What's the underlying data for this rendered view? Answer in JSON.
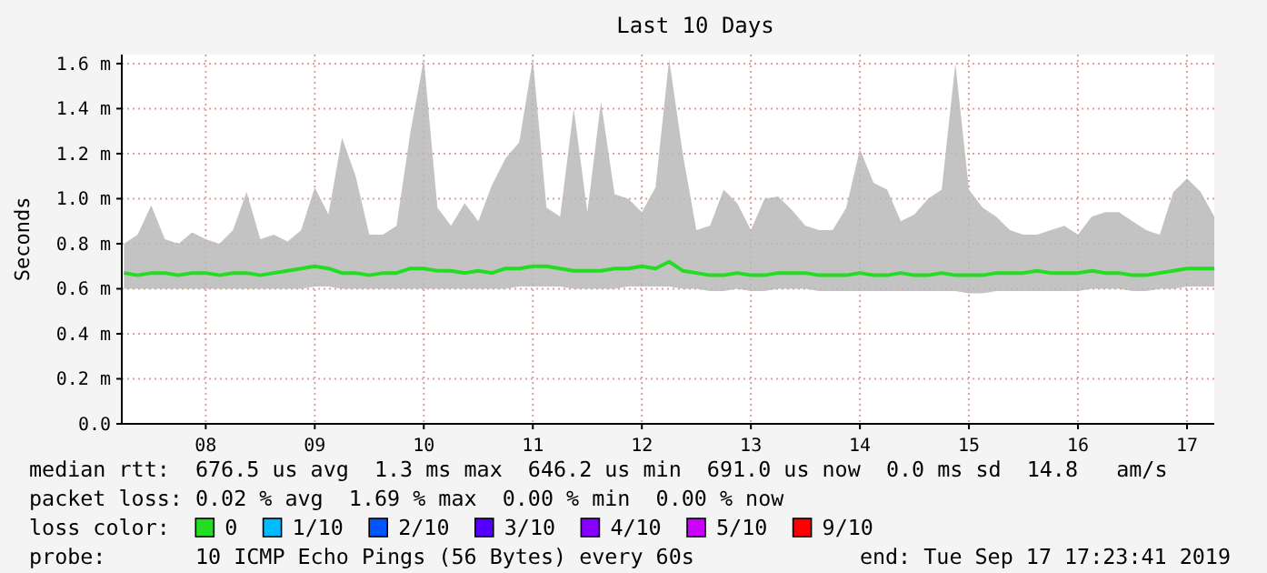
{
  "chart_data": {
    "type": "line",
    "title": "Last 10 Days",
    "ylabel": "Seconds",
    "x": [
      7.25,
      7.375,
      7.5,
      7.625,
      7.75,
      7.875,
      8,
      8.125,
      8.25,
      8.375,
      8.5,
      8.625,
      8.75,
      8.875,
      9,
      9.125,
      9.25,
      9.375,
      9.5,
      9.625,
      9.75,
      9.875,
      10,
      10.125,
      10.25,
      10.375,
      10.5,
      10.625,
      10.75,
      10.875,
      11,
      11.125,
      11.25,
      11.375,
      11.5,
      11.625,
      11.75,
      11.875,
      12,
      12.125,
      12.25,
      12.375,
      12.5,
      12.625,
      12.75,
      12.875,
      13,
      13.125,
      13.25,
      13.375,
      13.5,
      13.625,
      13.75,
      13.875,
      14,
      14.125,
      14.25,
      14.375,
      14.5,
      14.625,
      14.75,
      14.875,
      15,
      15.125,
      15.25,
      15.375,
      15.5,
      15.625,
      15.75,
      15.875,
      16,
      16.125,
      16.25,
      16.375,
      16.5,
      16.625,
      16.75,
      16.875,
      17,
      17.125,
      17.25
    ],
    "series": [
      {
        "name": "0",
        "color": "#22dd22",
        "values": [
          0.67,
          0.66,
          0.67,
          0.67,
          0.66,
          0.67,
          0.67,
          0.66,
          0.67,
          0.67,
          0.66,
          0.67,
          0.68,
          0.69,
          0.7,
          0.69,
          0.67,
          0.67,
          0.66,
          0.67,
          0.67,
          0.69,
          0.69,
          0.68,
          0.68,
          0.67,
          0.68,
          0.67,
          0.69,
          0.69,
          0.7,
          0.7,
          0.69,
          0.68,
          0.68,
          0.68,
          0.69,
          0.69,
          0.7,
          0.69,
          0.72,
          0.68,
          0.67,
          0.66,
          0.66,
          0.67,
          0.66,
          0.66,
          0.67,
          0.67,
          0.67,
          0.66,
          0.66,
          0.66,
          0.67,
          0.66,
          0.66,
          0.67,
          0.66,
          0.66,
          0.67,
          0.66,
          0.66,
          0.66,
          0.67,
          0.67,
          0.67,
          0.68,
          0.67,
          0.67,
          0.67,
          0.68,
          0.67,
          0.67,
          0.66,
          0.66,
          0.67,
          0.68,
          0.69,
          0.69,
          0.69
        ],
        "lower": [
          0.6,
          0.6,
          0.6,
          0.6,
          0.6,
          0.6,
          0.6,
          0.6,
          0.6,
          0.6,
          0.6,
          0.6,
          0.6,
          0.6,
          0.61,
          0.61,
          0.6,
          0.6,
          0.6,
          0.6,
          0.6,
          0.6,
          0.6,
          0.6,
          0.6,
          0.6,
          0.6,
          0.6,
          0.6,
          0.61,
          0.61,
          0.61,
          0.61,
          0.6,
          0.6,
          0.6,
          0.6,
          0.61,
          0.61,
          0.61,
          0.61,
          0.6,
          0.6,
          0.59,
          0.59,
          0.6,
          0.59,
          0.59,
          0.6,
          0.6,
          0.6,
          0.59,
          0.59,
          0.59,
          0.59,
          0.59,
          0.59,
          0.59,
          0.59,
          0.59,
          0.59,
          0.59,
          0.58,
          0.58,
          0.59,
          0.59,
          0.59,
          0.59,
          0.59,
          0.59,
          0.59,
          0.6,
          0.6,
          0.6,
          0.59,
          0.59,
          0.6,
          0.6,
          0.61,
          0.61,
          0.61
        ],
        "upper": [
          0.8,
          0.84,
          0.97,
          0.82,
          0.8,
          0.85,
          0.82,
          0.8,
          0.86,
          1.03,
          0.82,
          0.84,
          0.81,
          0.86,
          1.05,
          0.93,
          1.27,
          1.1,
          0.84,
          0.84,
          0.88,
          1.29,
          1.62,
          0.96,
          0.88,
          0.98,
          0.9,
          1.06,
          1.18,
          1.25,
          1.62,
          0.96,
          0.92,
          1.4,
          0.94,
          1.43,
          1.02,
          1.0,
          0.94,
          1.05,
          1.62,
          1.2,
          0.86,
          0.88,
          1.04,
          0.98,
          0.86,
          1.0,
          1.01,
          0.95,
          0.88,
          0.86,
          0.86,
          0.96,
          1.22,
          1.07,
          1.04,
          0.9,
          0.93,
          1.0,
          1.04,
          1.6,
          1.04,
          0.96,
          0.92,
          0.86,
          0.84,
          0.84,
          0.86,
          0.88,
          0.84,
          0.92,
          0.94,
          0.94,
          0.9,
          0.86,
          0.84,
          1.03,
          1.09,
          1.03,
          0.92
        ]
      },
      {
        "name": "1/10",
        "color": "#00bbff",
        "values": [
          null,
          null,
          null,
          null,
          null,
          null,
          null,
          null,
          null,
          null,
          null,
          null,
          null,
          null,
          null,
          null,
          null,
          null,
          null,
          null,
          null,
          null,
          null,
          null,
          null,
          null,
          null,
          null,
          null,
          null,
          null,
          null,
          null,
          null,
          null,
          null,
          null,
          null,
          null,
          null,
          null,
          null,
          null,
          null,
          null,
          null,
          null,
          null,
          null,
          null,
          null,
          null,
          null,
          null,
          null,
          null,
          null,
          null,
          null,
          null,
          null,
          null,
          null,
          null,
          null,
          null,
          null,
          null,
          null,
          null,
          null,
          null,
          null,
          null,
          null,
          null,
          null,
          null,
          null,
          null,
          null
        ]
      },
      {
        "name": "2/10",
        "color": "#0055ff",
        "values": [
          null,
          null,
          null,
          null,
          null,
          null,
          null,
          null,
          null,
          null,
          null,
          null,
          null,
          null,
          null,
          null,
          null,
          null,
          null,
          null,
          null,
          null,
          null,
          null,
          null,
          null,
          null,
          null,
          null,
          null,
          null,
          null,
          null,
          null,
          null,
          null,
          null,
          null,
          null,
          null,
          null,
          null,
          null,
          null,
          null,
          null,
          null,
          null,
          null,
          null,
          null,
          null,
          null,
          null,
          null,
          null,
          null,
          null,
          null,
          null,
          null,
          null,
          null,
          null,
          null,
          null,
          null,
          null,
          null,
          null,
          null,
          null,
          null,
          null,
          null,
          null,
          null,
          null,
          null,
          null,
          null
        ]
      },
      {
        "name": "3/10",
        "color": "#5500ff",
        "values": [
          null,
          null,
          null,
          null,
          null,
          null,
          null,
          null,
          null,
          null,
          null,
          null,
          null,
          null,
          null,
          null,
          null,
          null,
          null,
          null,
          null,
          null,
          null,
          null,
          null,
          null,
          null,
          null,
          null,
          null,
          null,
          null,
          null,
          null,
          null,
          null,
          null,
          null,
          null,
          null,
          null,
          null,
          null,
          null,
          null,
          null,
          null,
          null,
          null,
          null,
          null,
          null,
          null,
          null,
          null,
          null,
          null,
          null,
          null,
          null,
          null,
          null,
          null,
          null,
          null,
          null,
          null,
          null,
          null,
          null,
          null,
          null,
          null,
          null,
          null,
          null,
          null,
          null,
          null,
          null,
          null
        ]
      },
      {
        "name": "4/10",
        "color": "#8800ff",
        "values": [
          null,
          null,
          null,
          null,
          null,
          null,
          null,
          null,
          null,
          null,
          null,
          null,
          null,
          null,
          null,
          null,
          null,
          null,
          null,
          null,
          null,
          null,
          null,
          null,
          null,
          null,
          null,
          null,
          null,
          null,
          null,
          null,
          null,
          null,
          null,
          null,
          null,
          null,
          null,
          null,
          null,
          null,
          null,
          null,
          null,
          null,
          null,
          null,
          null,
          null,
          null,
          null,
          null,
          null,
          null,
          null,
          null,
          null,
          null,
          null,
          null,
          null,
          null,
          null,
          null,
          null,
          null,
          null,
          null,
          null,
          null,
          null,
          null,
          null,
          null,
          null,
          null,
          null,
          null,
          null,
          null
        ]
      },
      {
        "name": "5/10",
        "color": "#cc00ff",
        "values": [
          null,
          null,
          null,
          null,
          null,
          null,
          null,
          null,
          null,
          null,
          null,
          null,
          null,
          null,
          null,
          null,
          null,
          null,
          null,
          null,
          null,
          null,
          null,
          null,
          null,
          null,
          null,
          null,
          null,
          null,
          null,
          null,
          null,
          null,
          null,
          null,
          null,
          null,
          null,
          null,
          null,
          null,
          null,
          null,
          null,
          null,
          null,
          null,
          null,
          null,
          null,
          null,
          null,
          null,
          null,
          null,
          null,
          null,
          null,
          null,
          null,
          null,
          null,
          null,
          null,
          null,
          null,
          null,
          null,
          null,
          null,
          null,
          null,
          null,
          null,
          null,
          null,
          null,
          null,
          null,
          null
        ]
      },
      {
        "name": "9/10",
        "color": "#ff0000",
        "values": [
          null,
          null,
          null,
          null,
          null,
          null,
          null,
          null,
          null,
          null,
          null,
          null,
          null,
          null,
          null,
          null,
          null,
          null,
          null,
          null,
          null,
          null,
          null,
          null,
          null,
          null,
          null,
          null,
          null,
          null,
          null,
          null,
          null,
          null,
          null,
          null,
          null,
          null,
          null,
          null,
          null,
          null,
          null,
          null,
          null,
          null,
          null,
          null,
          null,
          null,
          null,
          null,
          null,
          null,
          null,
          null,
          null,
          null,
          null,
          null,
          null,
          null,
          null,
          null,
          null,
          null,
          null,
          null,
          null,
          null,
          null,
          null,
          null,
          null,
          null,
          null,
          null,
          null,
          null,
          null,
          null
        ]
      }
    ],
    "xlim": [
      7.23,
      17.25
    ],
    "xticks": [
      {
        "value": 8,
        "label": "08"
      },
      {
        "value": 9,
        "label": "09"
      },
      {
        "value": 10,
        "label": "10"
      },
      {
        "value": 11,
        "label": "11"
      },
      {
        "value": 12,
        "label": "12"
      },
      {
        "value": 13,
        "label": "13"
      },
      {
        "value": 14,
        "label": "14"
      },
      {
        "value": 15,
        "label": "15"
      },
      {
        "value": 16,
        "label": "16"
      },
      {
        "value": 17,
        "label": "17"
      }
    ],
    "ylim": [
      0,
      1.64
    ],
    "yticks": [
      {
        "value": 0,
        "label": "0.0"
      },
      {
        "value": 0.2,
        "label": "0.2 m"
      },
      {
        "value": 0.4,
        "label": "0.4 m"
      },
      {
        "value": 0.6,
        "label": "0.6 m"
      },
      {
        "value": 0.8,
        "label": "0.8 m"
      },
      {
        "value": 1.0,
        "label": "1.0 m"
      },
      {
        "value": 1.2,
        "label": "1.2 m"
      },
      {
        "value": 1.4,
        "label": "1.4 m"
      },
      {
        "value": 1.6,
        "label": "1.6 m"
      }
    ],
    "grid": true,
    "legend": "bottom",
    "legend_title": "loss color:",
    "annotations": [
      "median rtt:  676.5 us avg  1.3 ms max  646.2 us min  691.0 us now  0.0 ms sd  14.8   am/s",
      "packet loss: 0.02 % avg  1.69 % max  0.00 % min  0.00 % now",
      "probe:       10 ICMP Echo Pings (56 Bytes) every 60s",
      "end: Tue Sep 17 17:23:41 2019"
    ]
  }
}
